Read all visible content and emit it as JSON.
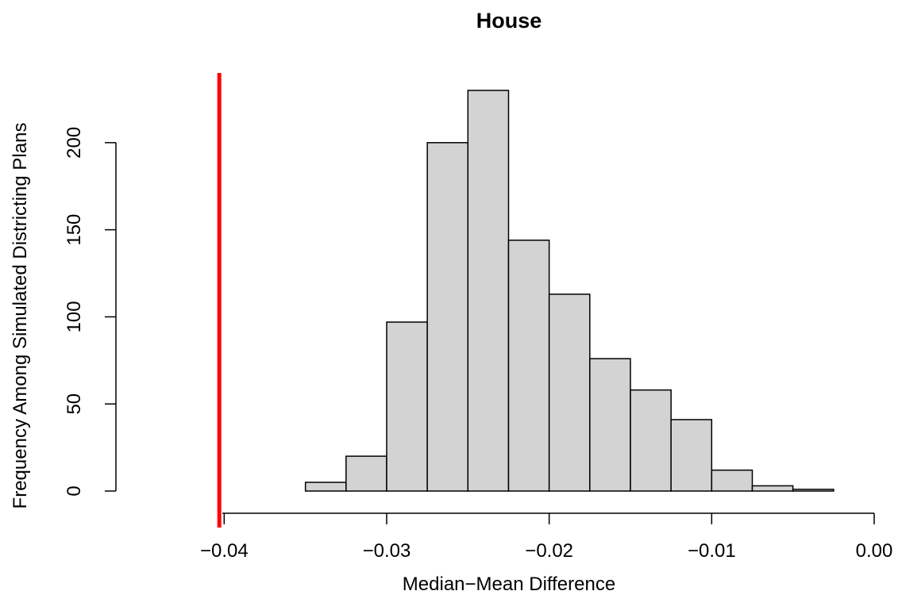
{
  "chart_data": {
    "type": "bar",
    "title": "House",
    "xlabel": "Median−Mean Difference",
    "ylabel": "Frequency Among Simulated Districting Plans",
    "xlim": [
      -0.045,
      0.0
    ],
    "ylim": [
      0,
      240
    ],
    "x_ticks": [
      -0.04,
      -0.03,
      -0.02,
      -0.01,
      0.0
    ],
    "x_tick_labels": [
      "−0.04",
      "−0.03",
      "−0.02",
      "−0.01",
      "0.00"
    ],
    "y_ticks": [
      0,
      50,
      100,
      150,
      200
    ],
    "y_tick_labels": [
      "0",
      "50",
      "100",
      "150",
      "200"
    ],
    "bin_edges": [
      -0.045,
      -0.0425,
      -0.04,
      -0.0375,
      -0.035,
      -0.0325,
      -0.03,
      -0.0275,
      -0.025,
      -0.0225,
      -0.02,
      -0.0175,
      -0.015,
      -0.0125,
      -0.01,
      -0.0075,
      -0.005,
      -0.0025
    ],
    "values": [
      0,
      0,
      0,
      0,
      5,
      20,
      97,
      200,
      230,
      144,
      113,
      76,
      58,
      41,
      12,
      3,
      1
    ],
    "bar_color": "#d3d3d3",
    "reference_line": {
      "x": -0.0403,
      "color": "#ff0000"
    },
    "grid": false,
    "legend": "none"
  }
}
